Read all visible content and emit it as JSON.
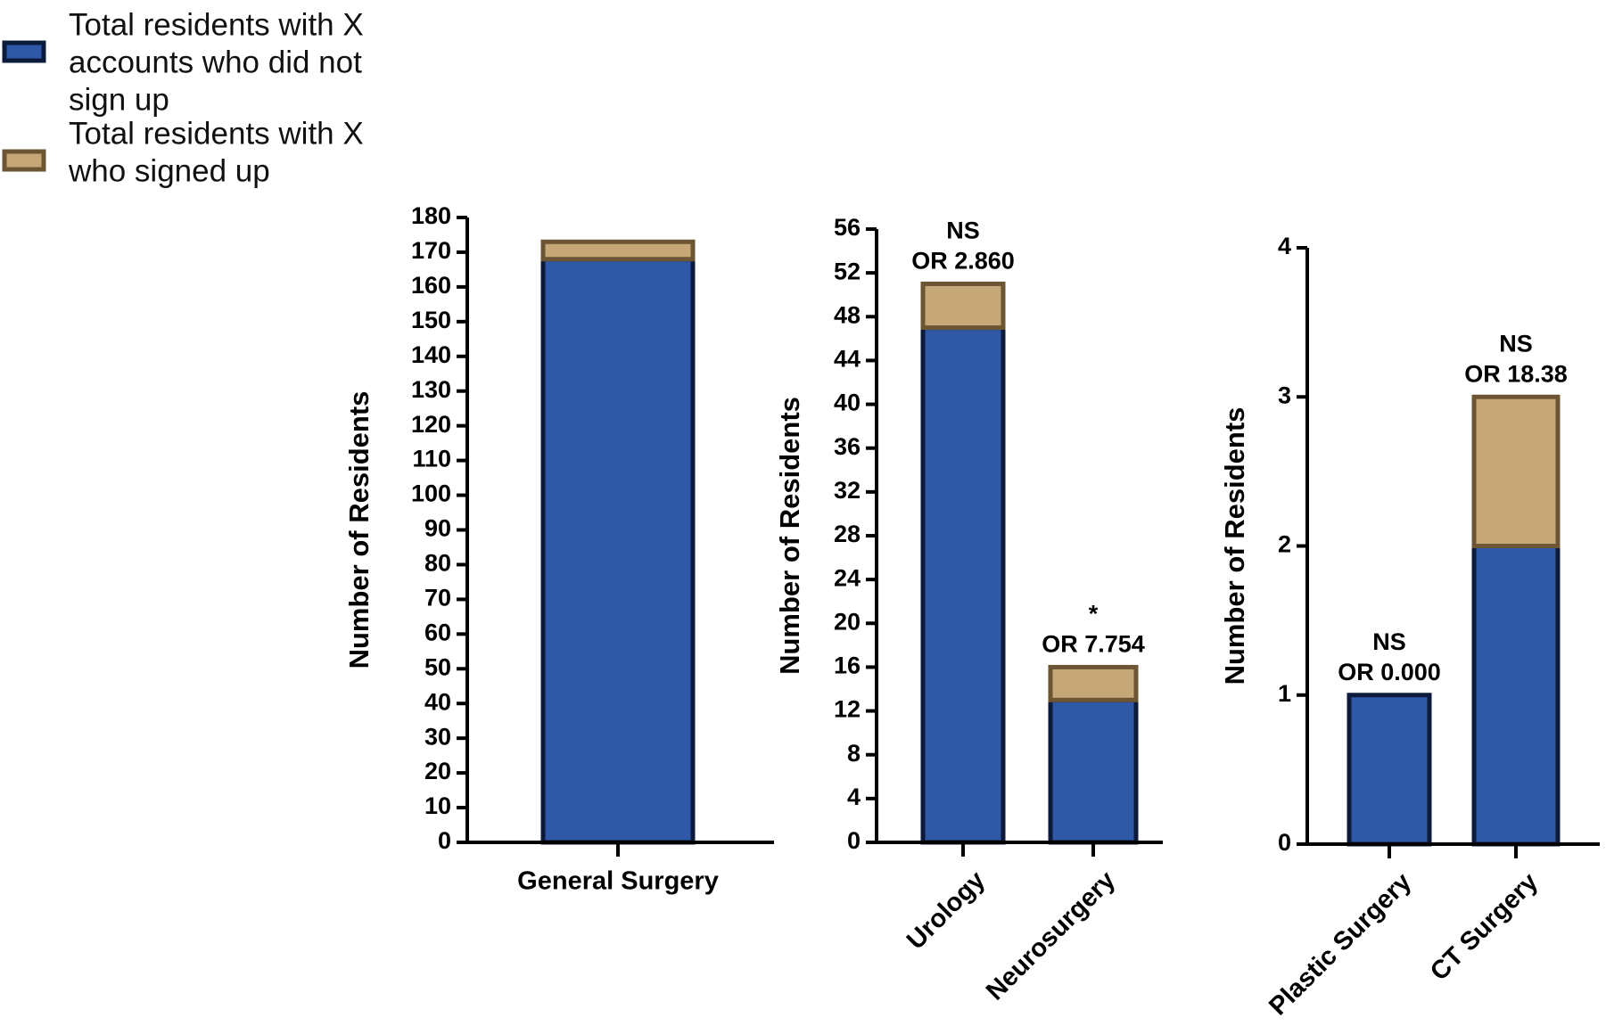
{
  "colors": {
    "not_signed_fill": "#2F58A6",
    "not_signed_stroke": "#0C1A3C",
    "signed_fill": "#C6A878",
    "signed_stroke": "#6B5533",
    "axis": "#000000"
  },
  "legend": [
    {
      "key": "not_signed",
      "lines": [
        "Total residents with X",
        "accounts who did not",
        "sign up"
      ]
    },
    {
      "key": "signed",
      "lines": [
        "Total residents with X",
        "who signed up"
      ]
    }
  ],
  "chart_data": [
    {
      "type": "bar",
      "stacked": true,
      "ylabel": "Number of Residents",
      "ylim": [
        0,
        180
      ],
      "yticks": [
        0,
        10,
        20,
        30,
        40,
        50,
        60,
        70,
        80,
        90,
        100,
        110,
        120,
        130,
        140,
        150,
        160,
        170,
        180
      ],
      "label_rotation": 0,
      "categories": [
        "General Surgery"
      ],
      "series": [
        {
          "name": "Total residents with X accounts who did not sign up",
          "key": "not_signed",
          "values": [
            168
          ]
        },
        {
          "name": "Total residents with X who signed up",
          "key": "signed",
          "values": [
            5
          ]
        }
      ],
      "annotations": [
        null
      ]
    },
    {
      "type": "bar",
      "stacked": true,
      "ylabel": "Number of Residents",
      "ylim": [
        0,
        56
      ],
      "yticks": [
        0,
        4,
        8,
        12,
        16,
        20,
        24,
        28,
        32,
        36,
        40,
        44,
        48,
        52,
        56
      ],
      "label_rotation": -45,
      "categories": [
        "Urology",
        "Neurosurgery"
      ],
      "series": [
        {
          "name": "Total residents with X accounts who did not sign up",
          "key": "not_signed",
          "values": [
            47,
            13
          ]
        },
        {
          "name": "Total residents with X who signed up",
          "key": "signed",
          "values": [
            4,
            3
          ]
        }
      ],
      "annotations": [
        [
          "NS",
          "OR 2.860"
        ],
        [
          "*",
          "OR 7.754"
        ]
      ]
    },
    {
      "type": "bar",
      "stacked": true,
      "ylabel": "Number of Residents",
      "ylim": [
        0,
        4
      ],
      "yticks": [
        0,
        1,
        2,
        3,
        4
      ],
      "label_rotation": -45,
      "categories": [
        "Plastic Surgery",
        "CT Surgery"
      ],
      "series": [
        {
          "name": "Total residents with X accounts who did not sign up",
          "key": "not_signed",
          "values": [
            1,
            2
          ]
        },
        {
          "name": "Total residents with X who signed up",
          "key": "signed",
          "values": [
            0,
            1
          ]
        }
      ],
      "annotations": [
        [
          "NS",
          "OR 0.000"
        ],
        [
          "NS",
          "OR 18.38"
        ]
      ]
    }
  ]
}
